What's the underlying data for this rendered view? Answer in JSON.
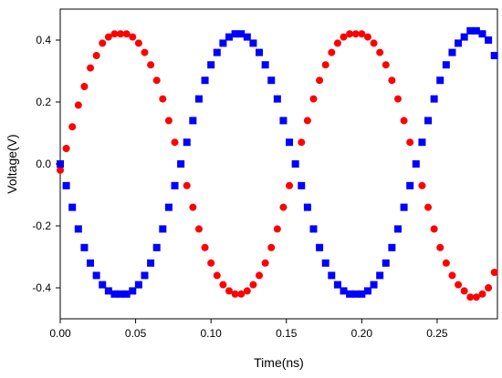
{
  "chart_data": {
    "type": "scatter",
    "xlabel": "Time(ns)",
    "ylabel": "Voltage(V)",
    "xlim": [
      0.0,
      0.29
    ],
    "ylim": [
      -0.5,
      0.5
    ],
    "xticks": [
      0.0,
      0.05,
      0.1,
      0.15,
      0.2,
      0.25
    ],
    "xtick_labels": [
      "0.00",
      "0.05",
      "0.10",
      "0.15",
      "0.20",
      "0.25"
    ],
    "yticks": [
      -0.4,
      -0.2,
      0.0,
      0.2,
      0.4
    ],
    "ytick_labels": [
      "-0.4",
      "-0.2",
      "0.0",
      "0.2",
      "0.4"
    ],
    "grid": false,
    "legend": "none",
    "series": [
      {
        "marker": "circle",
        "color": "#ff0000",
        "x": [
          0.0,
          0.004,
          0.008,
          0.012,
          0.016,
          0.02,
          0.024,
          0.028,
          0.032,
          0.036,
          0.04,
          0.044,
          0.048,
          0.052,
          0.056,
          0.06,
          0.064,
          0.068,
          0.072,
          0.076,
          0.08,
          0.084,
          0.088,
          0.092,
          0.096,
          0.1,
          0.104,
          0.108,
          0.112,
          0.116,
          0.12,
          0.124,
          0.128,
          0.132,
          0.136,
          0.14,
          0.144,
          0.148,
          0.152,
          0.156,
          0.16,
          0.164,
          0.168,
          0.172,
          0.176,
          0.18,
          0.184,
          0.188,
          0.192,
          0.196,
          0.2,
          0.204,
          0.208,
          0.212,
          0.216,
          0.22,
          0.224,
          0.228,
          0.232,
          0.236,
          0.24,
          0.244,
          0.248,
          0.252,
          0.256,
          0.26,
          0.264,
          0.268,
          0.272,
          0.276,
          0.28,
          0.284,
          0.288
        ],
        "y": [
          -0.02,
          0.05,
          0.12,
          0.19,
          0.25,
          0.31,
          0.35,
          0.39,
          0.41,
          0.42,
          0.42,
          0.42,
          0.41,
          0.39,
          0.36,
          0.32,
          0.27,
          0.21,
          0.14,
          0.07,
          0.0,
          -0.07,
          -0.14,
          -0.21,
          -0.27,
          -0.32,
          -0.36,
          -0.39,
          -0.41,
          -0.42,
          -0.42,
          -0.41,
          -0.39,
          -0.36,
          -0.32,
          -0.27,
          -0.21,
          -0.14,
          -0.07,
          0.0,
          0.07,
          0.14,
          0.21,
          0.27,
          0.32,
          0.36,
          0.39,
          0.41,
          0.42,
          0.42,
          0.42,
          0.41,
          0.39,
          0.36,
          0.32,
          0.27,
          0.21,
          0.14,
          0.07,
          0.0,
          -0.07,
          -0.14,
          -0.21,
          -0.27,
          -0.32,
          -0.36,
          -0.39,
          -0.41,
          -0.43,
          -0.43,
          -0.42,
          -0.4,
          -0.35
        ]
      },
      {
        "marker": "square",
        "color": "#0000ff",
        "x": [
          0.0,
          0.004,
          0.008,
          0.012,
          0.016,
          0.02,
          0.024,
          0.028,
          0.032,
          0.036,
          0.04,
          0.044,
          0.048,
          0.052,
          0.056,
          0.06,
          0.064,
          0.068,
          0.072,
          0.076,
          0.08,
          0.084,
          0.088,
          0.092,
          0.096,
          0.1,
          0.104,
          0.108,
          0.112,
          0.116,
          0.12,
          0.124,
          0.128,
          0.132,
          0.136,
          0.14,
          0.144,
          0.148,
          0.152,
          0.156,
          0.16,
          0.164,
          0.168,
          0.172,
          0.176,
          0.18,
          0.184,
          0.188,
          0.192,
          0.196,
          0.2,
          0.204,
          0.208,
          0.212,
          0.216,
          0.22,
          0.224,
          0.228,
          0.232,
          0.236,
          0.24,
          0.244,
          0.248,
          0.252,
          0.256,
          0.26,
          0.264,
          0.268,
          0.272,
          0.276,
          0.28,
          0.284,
          0.288
        ],
        "y": [
          0.0,
          -0.07,
          -0.14,
          -0.21,
          -0.27,
          -0.32,
          -0.36,
          -0.39,
          -0.41,
          -0.42,
          -0.42,
          -0.42,
          -0.41,
          -0.39,
          -0.36,
          -0.32,
          -0.27,
          -0.21,
          -0.14,
          -0.07,
          0.0,
          0.07,
          0.14,
          0.21,
          0.27,
          0.32,
          0.36,
          0.39,
          0.41,
          0.42,
          0.42,
          0.41,
          0.39,
          0.36,
          0.32,
          0.27,
          0.21,
          0.14,
          0.07,
          0.0,
          -0.07,
          -0.14,
          -0.21,
          -0.27,
          -0.32,
          -0.36,
          -0.39,
          -0.41,
          -0.42,
          -0.42,
          -0.42,
          -0.41,
          -0.39,
          -0.36,
          -0.32,
          -0.27,
          -0.21,
          -0.14,
          -0.07,
          0.0,
          0.07,
          0.14,
          0.21,
          0.27,
          0.32,
          0.36,
          0.39,
          0.41,
          0.43,
          0.43,
          0.42,
          0.4,
          0.35
        ]
      }
    ]
  }
}
